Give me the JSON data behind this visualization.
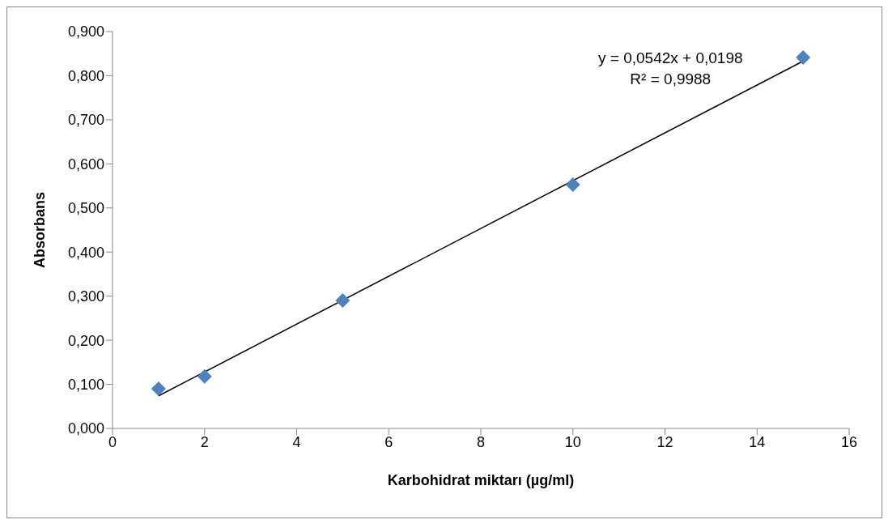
{
  "chart_data": {
    "type": "scatter",
    "xlabel": "Karbohidrat miktarı (µg/ml)",
    "ylabel": "Absorbans",
    "annotations": [
      "y = 0,0542x + 0,0198",
      "R² = 0,9988"
    ],
    "xlim": [
      0,
      16
    ],
    "xticks": [
      0,
      2,
      4,
      6,
      8,
      10,
      12,
      14,
      16
    ],
    "ylim": [
      0,
      0.9
    ],
    "yticks": [
      {
        "value": 0,
        "label": "0,000"
      },
      {
        "value": 0.1,
        "label": "0,100"
      },
      {
        "value": 0.2,
        "label": "0,200"
      },
      {
        "value": 0.3,
        "label": "0,300"
      },
      {
        "value": 0.4,
        "label": "0,400"
      },
      {
        "value": 0.5,
        "label": "0,500"
      },
      {
        "value": 0.6,
        "label": "0,600"
      },
      {
        "value": 0.7,
        "label": "0,700"
      },
      {
        "value": 0.8,
        "label": "0,800"
      },
      {
        "value": 0.9,
        "label": "0,900"
      }
    ],
    "series": [
      {
        "marker": "diamond",
        "color": "#4f81bd",
        "x": [
          1,
          2,
          5,
          10,
          15
        ],
        "values": [
          0.09,
          0.118,
          0.29,
          0.553,
          0.841
        ]
      },
      {
        "type": "line",
        "color": "#000000",
        "x": [
          1,
          15
        ],
        "values": [
          0.074,
          0.833
        ]
      }
    ]
  }
}
